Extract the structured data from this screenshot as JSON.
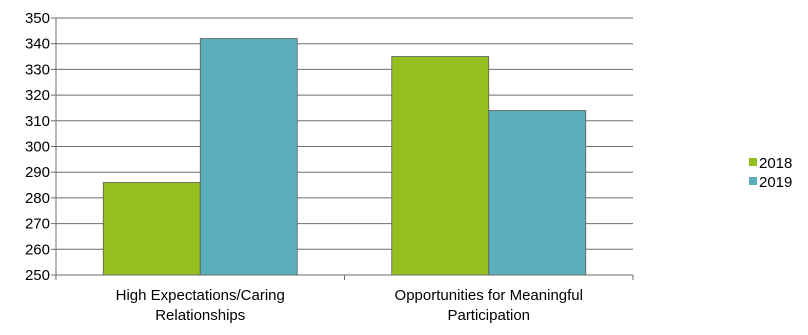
{
  "chart_data": {
    "type": "bar",
    "categories": [
      [
        "High Expectations/Caring",
        "Relationships"
      ],
      [
        "Opportunities for Meaningful",
        "Participation"
      ]
    ],
    "series": [
      {
        "name": "2018",
        "color": "#93c01f",
        "values": [
          286,
          335
        ]
      },
      {
        "name": "2019",
        "color": "#5aafbb",
        "values": [
          342,
          314
        ]
      }
    ],
    "ylim": [
      250,
      350
    ],
    "yticks": [
      250,
      260,
      270,
      280,
      290,
      300,
      310,
      320,
      330,
      340,
      350
    ],
    "grid": true,
    "legend": "right"
  }
}
